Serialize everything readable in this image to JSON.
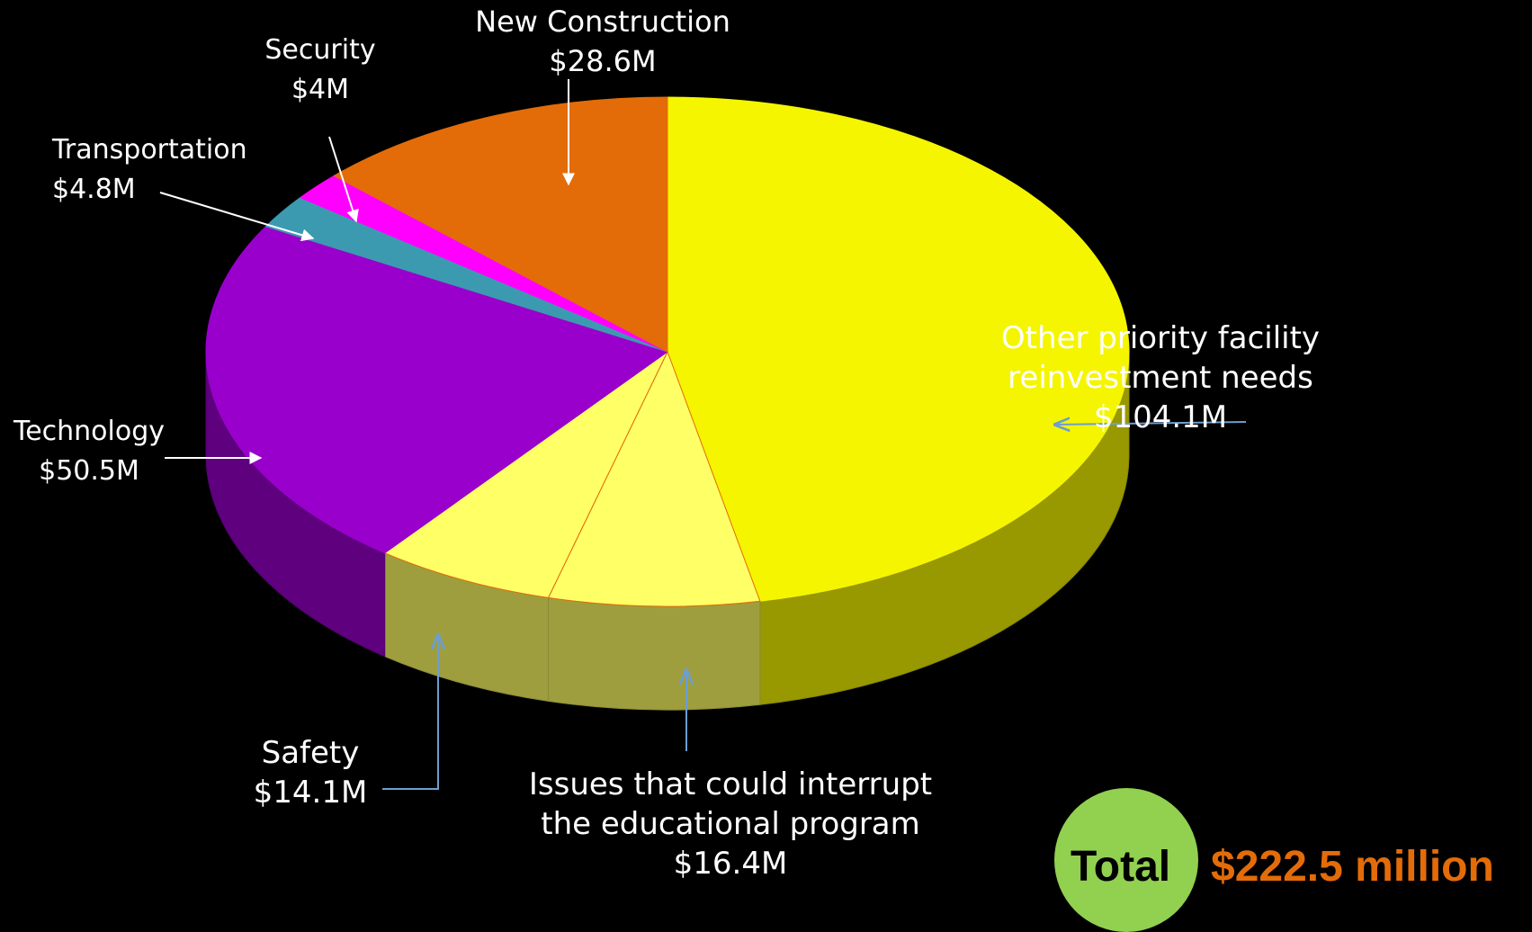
{
  "chart_data": {
    "type": "pie",
    "style": "3d",
    "slices": [
      {
        "label_lines": [
          "Other priority facility",
          "reinvestment needs",
          "$104.1M"
        ],
        "value": 104.1,
        "color": "#f5f500"
      },
      {
        "label_lines": [
          "Issues that could interrupt",
          "the educational program",
          "$16.4M"
        ],
        "value": 16.4,
        "color": "#ffff66"
      },
      {
        "label_lines": [
          "Safety",
          "$14.1M"
        ],
        "value": 14.1,
        "color": "#ffff66"
      },
      {
        "label_lines": [
          "Technology",
          "$50.5M"
        ],
        "value": 50.5,
        "color": "#9900cc"
      },
      {
        "label_lines": [
          "Transportation",
          "$4.8M"
        ],
        "value": 4.8,
        "color": "#3c9ab0"
      },
      {
        "label_lines": [
          "Security",
          "$4M"
        ],
        "value": 4.0,
        "color": "#ff00ff"
      },
      {
        "label_lines": [
          "New Construction",
          "$28.6M"
        ],
        "value": 28.6,
        "color": "#e36c09"
      }
    ]
  },
  "total": {
    "label": "Total",
    "value": "$222.5 million",
    "badge_color": "#92d050",
    "value_color": "#e36c09"
  }
}
